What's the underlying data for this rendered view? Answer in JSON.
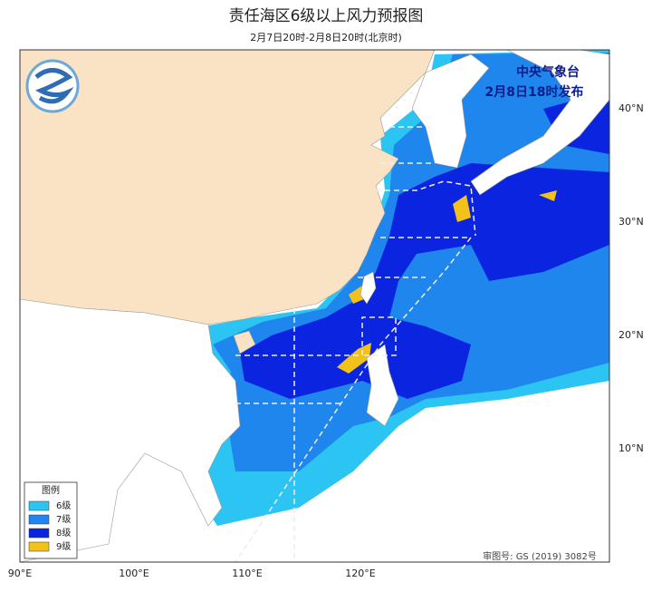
{
  "header": {
    "title": "责任海区6级以上风力预报图",
    "subtitle": "2月7日20时-2月8日20时(北京时)"
  },
  "issuer": {
    "name": "中央气象台",
    "time": "2月8日18时发布"
  },
  "latitude_labels": [
    "40°N",
    "30°N",
    "20°N",
    "10°N"
  ],
  "longitude_labels": [
    "90°E",
    "100°E",
    "110°E",
    "120°E"
  ],
  "legend": {
    "title": "图例",
    "items": [
      {
        "label": "6级",
        "color": "#2cc4f2"
      },
      {
        "label": "7级",
        "color": "#1f86ee"
      },
      {
        "label": "8级",
        "color": "#0b24e0"
      },
      {
        "label": "9级",
        "color": "#f3c21a"
      }
    ]
  },
  "approval": "审图号: GS (2019) 3082号"
}
